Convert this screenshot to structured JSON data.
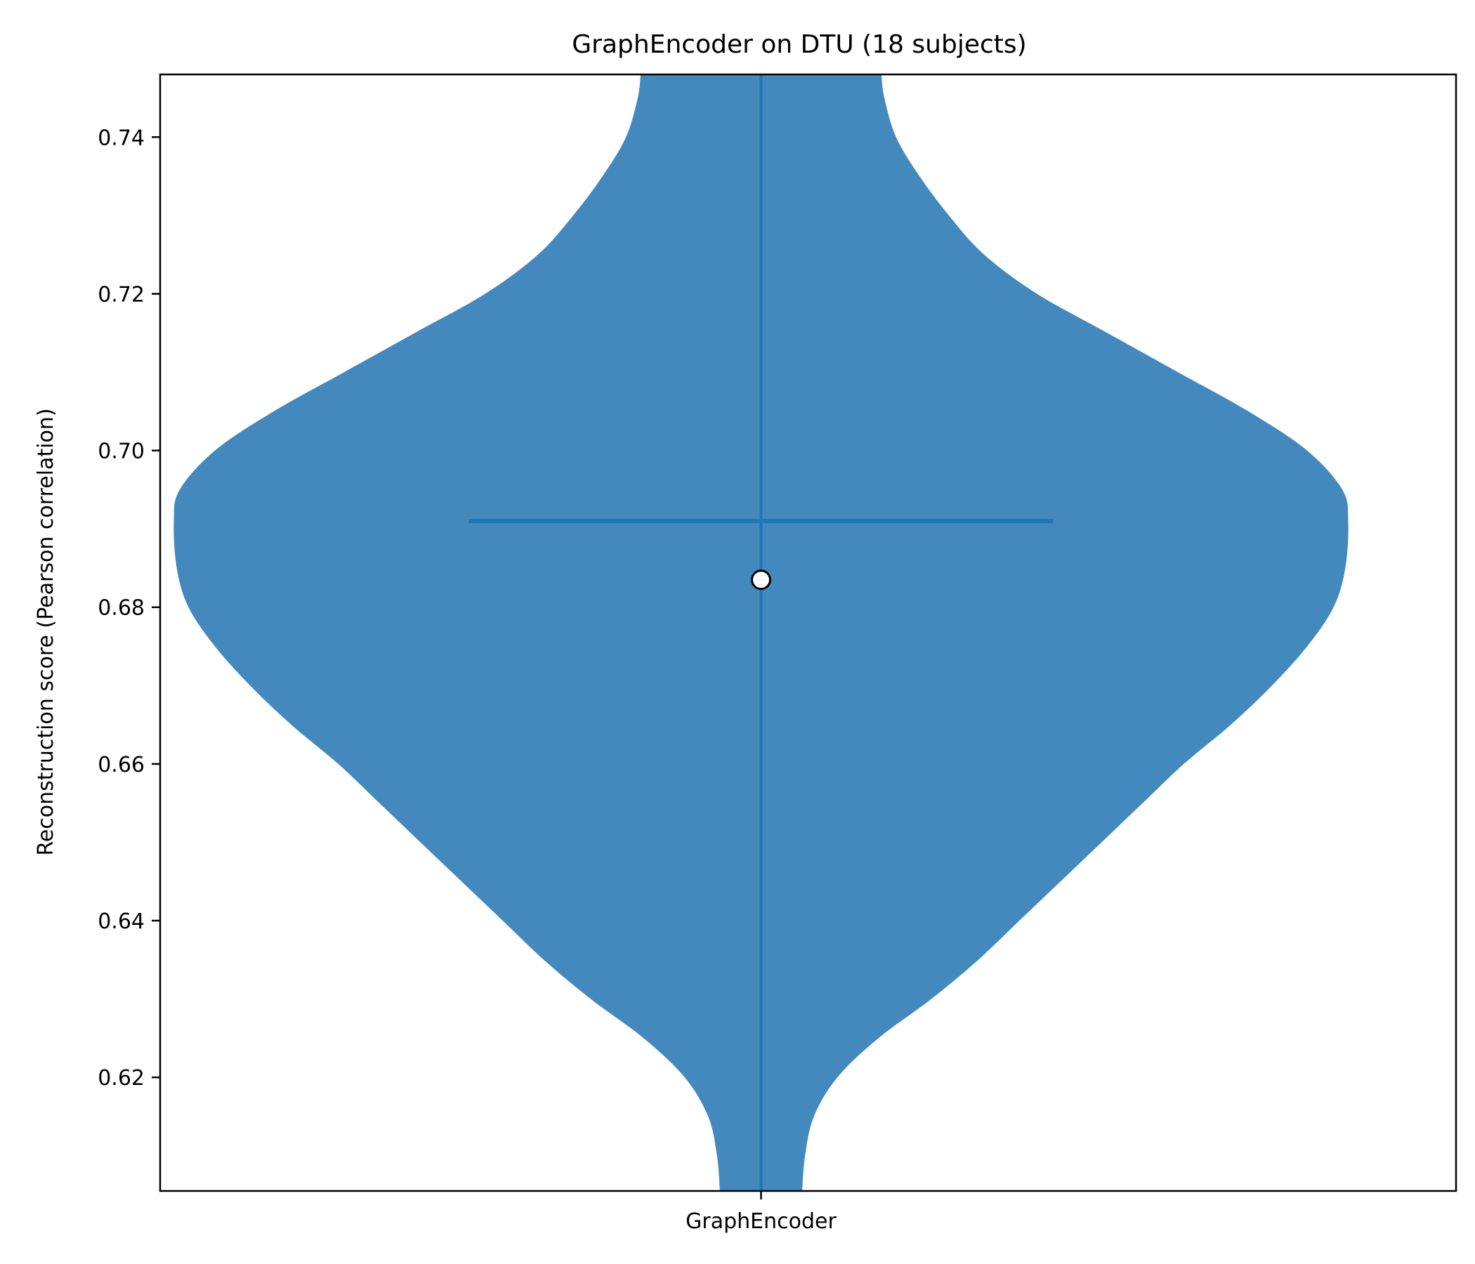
{
  "chart_data": {
    "type": "violin",
    "title": "GraphEncoder on DTU (18 subjects)",
    "xlabel": "",
    "ylabel": "Reconstruction score (Pearson correlation)",
    "categories": [
      "GraphEncoder"
    ],
    "ylim": [
      0.6055,
      0.748
    ],
    "yticks": [
      0.62,
      0.64,
      0.66,
      0.68,
      0.7,
      0.72,
      0.74
    ],
    "ytick_labels": [
      "0.62",
      "0.64",
      "0.66",
      "0.68",
      "0.70",
      "0.72",
      "0.74"
    ],
    "median": 0.691,
    "mean": 0.6835,
    "density_profile": [
      {
        "y": 0.6055,
        "w": 0.07
      },
      {
        "y": 0.61,
        "w": 0.075
      },
      {
        "y": 0.615,
        "w": 0.09
      },
      {
        "y": 0.62,
        "w": 0.13
      },
      {
        "y": 0.625,
        "w": 0.2
      },
      {
        "y": 0.63,
        "w": 0.29
      },
      {
        "y": 0.635,
        "w": 0.37
      },
      {
        "y": 0.64,
        "w": 0.44
      },
      {
        "y": 0.645,
        "w": 0.51
      },
      {
        "y": 0.65,
        "w": 0.58
      },
      {
        "y": 0.655,
        "w": 0.65
      },
      {
        "y": 0.66,
        "w": 0.72
      },
      {
        "y": 0.665,
        "w": 0.8
      },
      {
        "y": 0.67,
        "w": 0.87
      },
      {
        "y": 0.675,
        "w": 0.93
      },
      {
        "y": 0.68,
        "w": 0.975
      },
      {
        "y": 0.685,
        "w": 0.995
      },
      {
        "y": 0.691,
        "w": 1.0
      },
      {
        "y": 0.695,
        "w": 0.99
      },
      {
        "y": 0.7,
        "w": 0.93
      },
      {
        "y": 0.705,
        "w": 0.83
      },
      {
        "y": 0.71,
        "w": 0.71
      },
      {
        "y": 0.715,
        "w": 0.59
      },
      {
        "y": 0.72,
        "w": 0.47
      },
      {
        "y": 0.725,
        "w": 0.38
      },
      {
        "y": 0.73,
        "w": 0.32
      },
      {
        "y": 0.735,
        "w": 0.27
      },
      {
        "y": 0.74,
        "w": 0.23
      },
      {
        "y": 0.745,
        "w": 0.21
      },
      {
        "y": 0.748,
        "w": 0.205
      }
    ],
    "colors": {
      "violin_fill": "#4389be",
      "line": "#1f77b4",
      "mean_marker_fill": "#ffffff",
      "mean_marker_edge": "#000000"
    }
  }
}
